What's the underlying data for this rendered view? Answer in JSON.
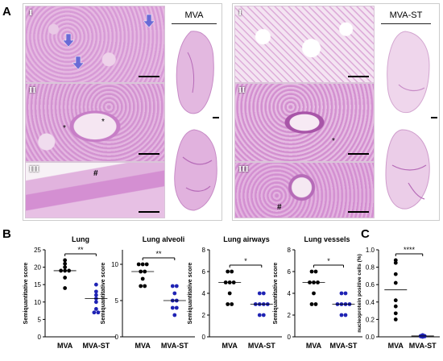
{
  "figure": {
    "panel_a_letter": "A",
    "panel_b_letter": "B",
    "panel_c_letter": "C",
    "left_group": {
      "header": "MVA",
      "rows": [
        "I",
        "II",
        "III"
      ],
      "annotations": [
        "*",
        "*",
        "#"
      ]
    },
    "right_group": {
      "header": "MVA-ST",
      "rows": [
        "I",
        "II",
        "III"
      ],
      "annotations": [
        "*",
        "#"
      ]
    }
  },
  "colors": {
    "mva": "#000000",
    "mva_st": "#1f23b4",
    "tissue": "#dcaad6",
    "tissue_dark": "#b66bb8",
    "arrow": "#6a6ad6"
  },
  "chart_data": [
    {
      "type": "scatter",
      "title": "Lung",
      "ylabel": "Semiquantitative score",
      "categories": [
        "MVA",
        "MVA-ST"
      ],
      "ylim": [
        0,
        25
      ],
      "yticks": [
        0,
        5,
        10,
        15,
        20,
        25
      ],
      "significance": "**",
      "series": [
        {
          "name": "MVA",
          "values": [
            22,
            21,
            20,
            19,
            19,
            19,
            17,
            14
          ],
          "median": 19
        },
        {
          "name": "MVA-ST",
          "values": [
            15,
            13,
            12,
            11,
            10,
            8,
            7,
            7
          ],
          "median": 11
        }
      ]
    },
    {
      "type": "scatter",
      "title": "Lung alveoli",
      "ylabel": "Semiquantitative score",
      "categories": [
        "MVA",
        "MVA-ST"
      ],
      "ylim": [
        0,
        12
      ],
      "yticks": [
        0,
        5,
        10
      ],
      "significance": "**",
      "series": [
        {
          "name": "MVA",
          "values": [
            10,
            10,
            10,
            9,
            9,
            8,
            7,
            7
          ],
          "median": 9
        },
        {
          "name": "MVA-ST",
          "values": [
            7,
            7,
            6,
            5,
            5,
            4,
            4,
            3
          ],
          "median": 5
        }
      ]
    },
    {
      "type": "scatter",
      "title": "Lung airways",
      "ylabel": "Semiquantitative score",
      "categories": [
        "MVA",
        "MVA-ST"
      ],
      "ylim": [
        0,
        8
      ],
      "yticks": [
        0,
        2,
        4,
        6,
        8
      ],
      "significance": "*",
      "series": [
        {
          "name": "MVA",
          "values": [
            6,
            6,
            5,
            5,
            5,
            4,
            3,
            3
          ],
          "median": 5
        },
        {
          "name": "MVA-ST",
          "values": [
            4,
            4,
            3,
            3,
            3,
            3,
            2,
            2
          ],
          "median": 3
        }
      ]
    },
    {
      "type": "scatter",
      "title": "Lung vessels",
      "ylabel": "Semiquantitative score",
      "categories": [
        "MVA",
        "MVA-ST"
      ],
      "ylim": [
        0,
        8
      ],
      "yticks": [
        0,
        2,
        4,
        6,
        8
      ],
      "significance": "*",
      "series": [
        {
          "name": "MVA",
          "values": [
            6,
            6,
            5,
            5,
            5,
            4,
            3,
            3
          ],
          "median": 5
        },
        {
          "name": "MVA-ST",
          "values": [
            4,
            4,
            3,
            3,
            3,
            3,
            2,
            2
          ],
          "median": 3
        }
      ]
    },
    {
      "type": "scatter",
      "title": "",
      "ylabel": "nucleoprotein positive cells (%)",
      "categories": [
        "MVA",
        "MVA-ST"
      ],
      "ylim": [
        0,
        1.0
      ],
      "yticks": [
        0.0,
        0.2,
        0.4,
        0.6,
        0.8,
        1.0
      ],
      "ytick_labels": [
        "0.0",
        "0.2",
        "0.4",
        "0.6",
        "0.8",
        "1.0"
      ],
      "significance": "****",
      "series": [
        {
          "name": "MVA",
          "values": [
            0.88,
            0.85,
            0.72,
            0.62,
            0.42,
            0.35,
            0.27,
            0.2
          ],
          "median": 0.54
        },
        {
          "name": "MVA-ST",
          "values": [
            0.02,
            0.015,
            0.01,
            0.01,
            0.008,
            0.005,
            0.005,
            0.0
          ],
          "median": 0.01
        }
      ]
    }
  ]
}
